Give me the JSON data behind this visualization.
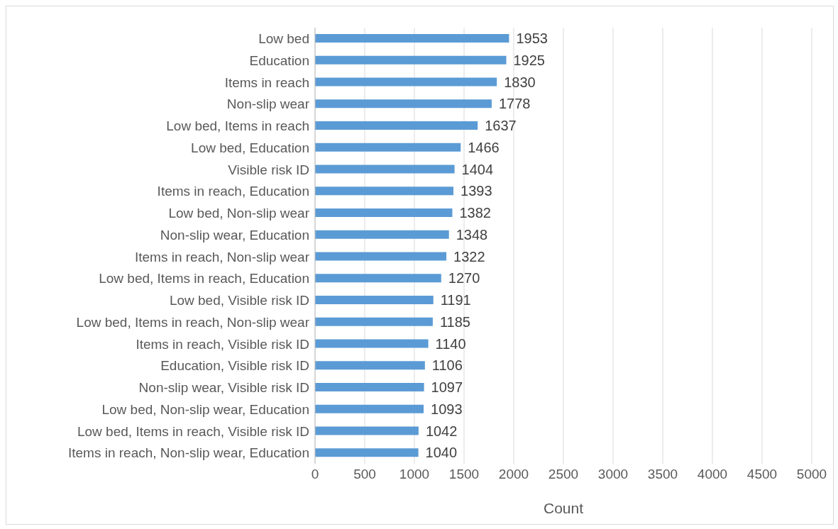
{
  "chart_data": {
    "type": "bar",
    "orientation": "horizontal",
    "xlabel": "Count",
    "categories": [
      "Low bed",
      "Education",
      "Items in reach",
      "Non-slip wear",
      "Low bed, Items in reach",
      "Low bed, Education",
      "Visible risk ID",
      "Items in reach, Education",
      "Low bed, Non-slip wear",
      "Non-slip wear, Education",
      "Items in reach, Non-slip wear",
      "Low bed, Items in reach, Education",
      "Low bed, Visible risk ID",
      "Low bed, Items in reach, Non-slip wear",
      "Items in reach, Visible risk ID",
      "Education, Visible risk ID",
      "Non-slip wear, Visible risk ID",
      "Low bed, Non-slip wear, Education",
      "Low bed, Items in reach, Visible risk ID",
      "Items in reach, Non-slip wear, Education"
    ],
    "values": [
      1953,
      1925,
      1830,
      1778,
      1637,
      1466,
      1404,
      1393,
      1382,
      1348,
      1322,
      1270,
      1191,
      1185,
      1140,
      1106,
      1097,
      1093,
      1042,
      1040
    ],
    "color": "#5b9bd5",
    "xlim": [
      0,
      5000
    ],
    "xticks": [
      0,
      500,
      1000,
      1500,
      2000,
      2500,
      3000,
      3500,
      4000,
      4500,
      5000
    ],
    "grid": "x",
    "data_labels": true
  }
}
